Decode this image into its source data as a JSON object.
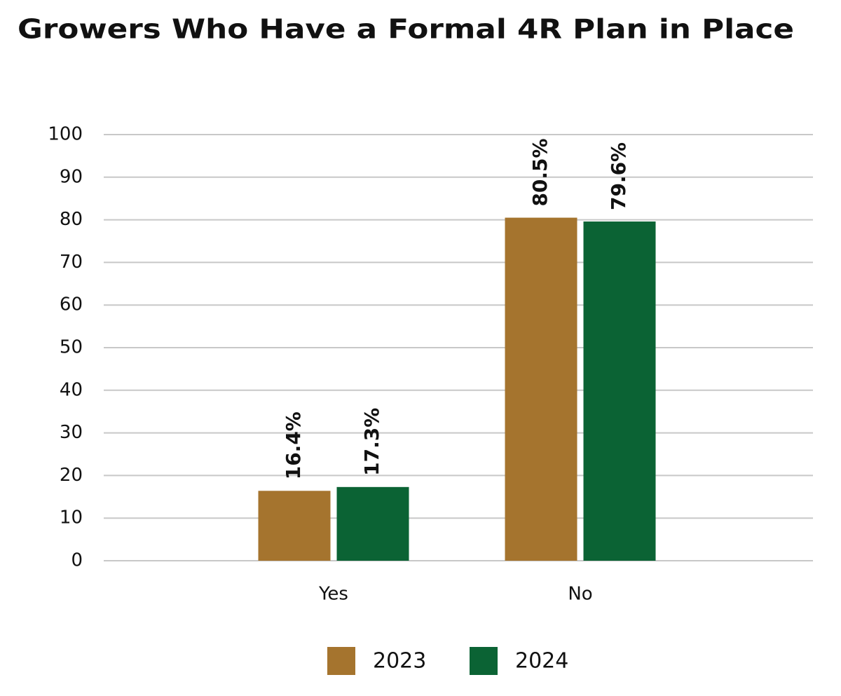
{
  "chart_data": {
    "type": "bar",
    "title": "Growers Who Have a Formal 4R Plan in Place",
    "categories": [
      "Yes",
      "No"
    ],
    "series": [
      {
        "name": "2023",
        "color": "#a5742e",
        "values": [
          16.4,
          80.5
        ],
        "value_labels": [
          "16.4%",
          "80.5%"
        ]
      },
      {
        "name": "2024",
        "color": "#0b6334",
        "values": [
          17.3,
          79.6
        ],
        "value_labels": [
          "17.3%",
          "79.6%"
        ]
      }
    ],
    "ylim": [
      0,
      100
    ],
    "yticks": [
      0,
      10,
      20,
      30,
      40,
      50,
      60,
      70,
      80,
      90,
      100
    ],
    "grid": true,
    "legend": "bottom"
  }
}
